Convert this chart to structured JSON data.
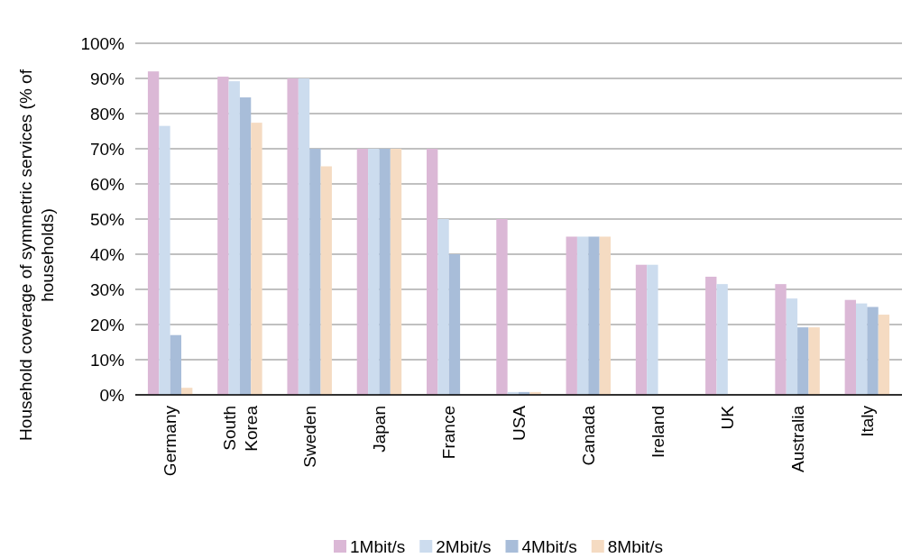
{
  "chart_data": {
    "type": "bar",
    "ylabel": "Household coverage of symmetric services (% of households)",
    "categories": [
      "Germany",
      "South Korea",
      "Sweden",
      "Japan",
      "France",
      "USA",
      "Canada",
      "Ireland",
      "UK",
      "Australia",
      "Italy"
    ],
    "series": [
      {
        "name": "1Mbit/s",
        "color": "#dbb8d6",
        "values": [
          92,
          90.5,
          90,
          70,
          70,
          50,
          45,
          37,
          33.6,
          31.5,
          27
        ]
      },
      {
        "name": "2Mbit/s",
        "color": "#ccdcee",
        "values": [
          76.5,
          89.2,
          90,
          70,
          50,
          0.8,
          45,
          37,
          31.5,
          27.4,
          26
        ]
      },
      {
        "name": "4Mbit/s",
        "color": "#a8bdd9",
        "values": [
          17,
          84.6,
          70,
          70,
          40,
          0.8,
          45,
          null,
          null,
          19.2,
          25
        ]
      },
      {
        "name": "8Mbit/s",
        "color": "#f5dbc2",
        "values": [
          2,
          77.4,
          65,
          70,
          null,
          0.8,
          45,
          null,
          null,
          19.2,
          22.8
        ]
      }
    ],
    "ylim": [
      0,
      100
    ],
    "yticks": [
      {
        "value": 0,
        "label": "0%"
      },
      {
        "value": 10,
        "label": "10%"
      },
      {
        "value": 20,
        "label": "20%"
      },
      {
        "value": 30,
        "label": "30%"
      },
      {
        "value": 40,
        "label": "40%"
      },
      {
        "value": 50,
        "label": "50%"
      },
      {
        "value": 60,
        "label": "60%"
      },
      {
        "value": 70,
        "label": "70%"
      },
      {
        "value": 80,
        "label": "80%"
      },
      {
        "value": 90,
        "label": "90%"
      },
      {
        "value": 100,
        "label": "100%"
      }
    ],
    "grid": "y",
    "legend": "bottom"
  }
}
